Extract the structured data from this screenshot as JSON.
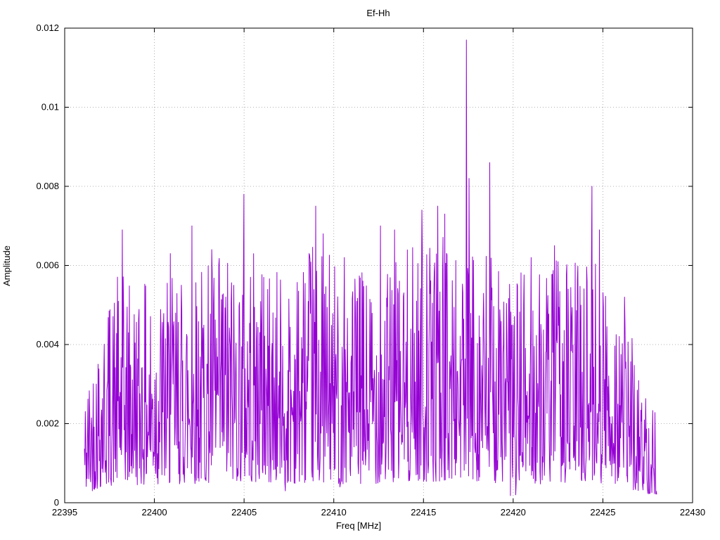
{
  "chart_data": {
    "type": "line",
    "title": "Ef-Hh",
    "xlabel": "Freq [MHz]",
    "ylabel": "Amplitude",
    "xlim": [
      22395,
      22430
    ],
    "ylim": [
      0,
      0.012
    ],
    "grid": true,
    "legend": "none",
    "line_color": "#9400d3",
    "grid_color": "#9a9a9a",
    "border_color": "#000000",
    "x_ticks": {
      "values": [
        22395,
        22400,
        22405,
        22410,
        22415,
        22420,
        22425,
        22430
      ],
      "labels": [
        "22395",
        "22400",
        "22405",
        "22410",
        "22415",
        "22420",
        "22425",
        "22430"
      ]
    },
    "y_ticks": {
      "values": [
        0,
        0.002,
        0.004,
        0.006,
        0.008,
        0.01,
        0.012
      ],
      "labels": [
        "0",
        "0.002",
        "0.004",
        "0.006",
        "0.008",
        "0.01",
        "0.012"
      ]
    },
    "series": [
      {
        "name": "Ef-Hh",
        "x_start": 22396.1,
        "x_end": 22428.0,
        "n_points": 1300,
        "seed": 42,
        "noise_base": 0.08,
        "noise_exponent": 1.6,
        "noise_floor": 0.0002,
        "envelope": [
          [
            22396.1,
            0.0028
          ],
          [
            22397.0,
            0.0048
          ],
          [
            22398.0,
            0.0058
          ],
          [
            22400.0,
            0.0055
          ],
          [
            22402.0,
            0.006
          ],
          [
            22405.0,
            0.0066
          ],
          [
            22407.0,
            0.0058
          ],
          [
            22409.0,
            0.0066
          ],
          [
            22411.0,
            0.0058
          ],
          [
            22413.0,
            0.0062
          ],
          [
            22415.0,
            0.0066
          ],
          [
            22416.0,
            0.0068
          ],
          [
            22418.0,
            0.0066
          ],
          [
            22420.0,
            0.0058
          ],
          [
            22422.0,
            0.006
          ],
          [
            22424.0,
            0.0066
          ],
          [
            22425.0,
            0.006
          ],
          [
            22426.0,
            0.0055
          ],
          [
            22427.0,
            0.0034
          ],
          [
            22428.0,
            0.0022
          ]
        ],
        "peaks": [
          [
            22398.2,
            0.0069
          ],
          [
            22400.9,
            0.0063
          ],
          [
            22402.1,
            0.007
          ],
          [
            22403.2,
            0.0064
          ],
          [
            22405.0,
            0.0078
          ],
          [
            22406.1,
            0.0057
          ],
          [
            22409.0,
            0.0075
          ],
          [
            22409.4,
            0.0068
          ],
          [
            22410.6,
            0.0062
          ],
          [
            22412.6,
            0.007
          ],
          [
            22413.4,
            0.0069
          ],
          [
            22414.9,
            0.0074
          ],
          [
            22415.8,
            0.0075
          ],
          [
            22416.2,
            0.0073
          ],
          [
            22417.4,
            0.0117
          ],
          [
            22417.55,
            0.0082
          ],
          [
            22418.7,
            0.0086
          ],
          [
            22421.0,
            0.0062
          ],
          [
            22422.3,
            0.0065
          ],
          [
            22424.4,
            0.008
          ],
          [
            22424.8,
            0.0069
          ],
          [
            22426.2,
            0.0052
          ]
        ],
        "dips": [
          [
            22407.3,
            0.0003
          ],
          [
            22410.35,
            0.0004
          ],
          [
            22419.85,
            0.00018
          ],
          [
            22420.15,
            0.0002
          ],
          [
            22426.9,
            0.0005
          ]
        ]
      }
    ]
  }
}
